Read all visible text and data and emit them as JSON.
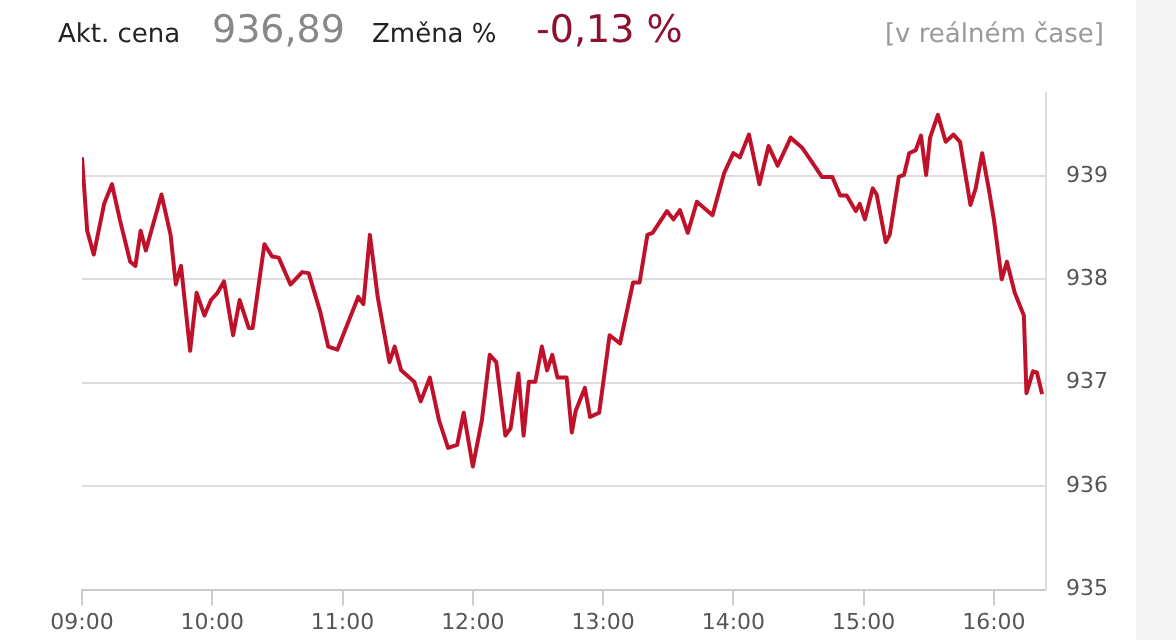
{
  "chart_data": {
    "type": "line",
    "annotations": [
      "Akt. cena",
      "936,89",
      "Změna %",
      "-0,13 %",
      "[v reálném čase]"
    ],
    "x": [
      9.0,
      9.04,
      9.09,
      9.17,
      9.23,
      9.29,
      9.37,
      9.41,
      9.45,
      9.49,
      9.61,
      9.68,
      9.72,
      9.76,
      9.83,
      9.88,
      9.94,
      9.99,
      10.04,
      10.09,
      10.16,
      10.21,
      10.28,
      10.31,
      10.4,
      10.46,
      10.51,
      10.6,
      10.69,
      10.74,
      10.83,
      10.89,
      10.96,
      11.12,
      11.16,
      11.21,
      11.27,
      11.36,
      11.4,
      11.45,
      11.55,
      11.6,
      11.67,
      11.74,
      11.81,
      11.88,
      11.93,
      12.0,
      12.07,
      12.13,
      12.18,
      12.25,
      12.29,
      12.35,
      12.39,
      12.43,
      12.48,
      12.53,
      12.57,
      12.61,
      12.65,
      12.72,
      12.76,
      12.79,
      12.86,
      12.9,
      12.97,
      13.05,
      13.13,
      13.23,
      13.28,
      13.34,
      13.38,
      13.49,
      13.54,
      13.59,
      13.65,
      13.72,
      13.84,
      13.93,
      14.0,
      14.05,
      14.12,
      14.2,
      14.27,
      14.34,
      14.44,
      14.53,
      14.6,
      14.68,
      14.76,
      14.82,
      14.87,
      14.94,
      14.97,
      15.01,
      15.07,
      15.1,
      15.17,
      15.2,
      15.27,
      15.31,
      15.35,
      15.4,
      15.44,
      15.48,
      15.51,
      15.57,
      15.63,
      15.69,
      15.74,
      15.82,
      15.86,
      15.91,
      15.96,
      16.0,
      16.06,
      16.1,
      16.16,
      16.23,
      16.25,
      16.3,
      16.33,
      16.37
    ],
    "series": [
      {
        "color": "#c0112b",
        "values": [
          939.18,
          938.47,
          938.24,
          938.73,
          938.92,
          938.58,
          938.17,
          938.13,
          938.47,
          938.28,
          938.82,
          938.43,
          937.95,
          938.13,
          937.31,
          937.87,
          937.65,
          937.8,
          937.87,
          937.98,
          937.46,
          937.8,
          937.53,
          937.53,
          938.34,
          938.22,
          938.21,
          937.95,
          938.07,
          938.06,
          937.68,
          937.35,
          937.32,
          937.83,
          937.76,
          938.43,
          937.83,
          937.2,
          937.35,
          937.12,
          937.01,
          936.82,
          937.05,
          936.64,
          936.37,
          936.4,
          936.71,
          936.19,
          936.64,
          937.27,
          937.2,
          936.49,
          936.56,
          937.09,
          936.49,
          937.01,
          937.01,
          937.35,
          937.12,
          937.27,
          937.05,
          937.05,
          936.52,
          936.73,
          936.95,
          936.67,
          936.71,
          937.46,
          937.38,
          937.97,
          937.97,
          938.43,
          938.45,
          938.66,
          938.58,
          938.67,
          938.45,
          938.75,
          938.62,
          939.03,
          939.22,
          939.18,
          939.4,
          938.92,
          939.29,
          939.1,
          939.37,
          939.27,
          939.14,
          938.99,
          938.99,
          938.81,
          938.81,
          938.66,
          938.73,
          938.58,
          938.88,
          938.82,
          938.36,
          938.43,
          938.99,
          939.01,
          939.22,
          939.25,
          939.39,
          939.01,
          939.37,
          939.59,
          939.33,
          939.4,
          939.33,
          938.72,
          938.88,
          939.22,
          938.88,
          938.58,
          938.0,
          938.17,
          937.87,
          937.65,
          936.9,
          937.11,
          937.1,
          936.89
        ]
      }
    ],
    "xlim": [
      9,
      16.4
    ],
    "xticks": [
      {
        "value": 9,
        "label": "09:00"
      },
      {
        "value": 10,
        "label": "10:00"
      },
      {
        "value": 11,
        "label": "11:00"
      },
      {
        "value": 12,
        "label": "12:00"
      },
      {
        "value": 13,
        "label": "13:00"
      },
      {
        "value": 14,
        "label": "14:00"
      },
      {
        "value": 15,
        "label": "15:00"
      },
      {
        "value": 16,
        "label": "16:00"
      }
    ],
    "ylim": [
      935,
      939.8
    ],
    "yticks": [
      935,
      936,
      937,
      938,
      939
    ],
    "grid": "y",
    "legend": false,
    "marker": "none",
    "line_style": "solid"
  }
}
